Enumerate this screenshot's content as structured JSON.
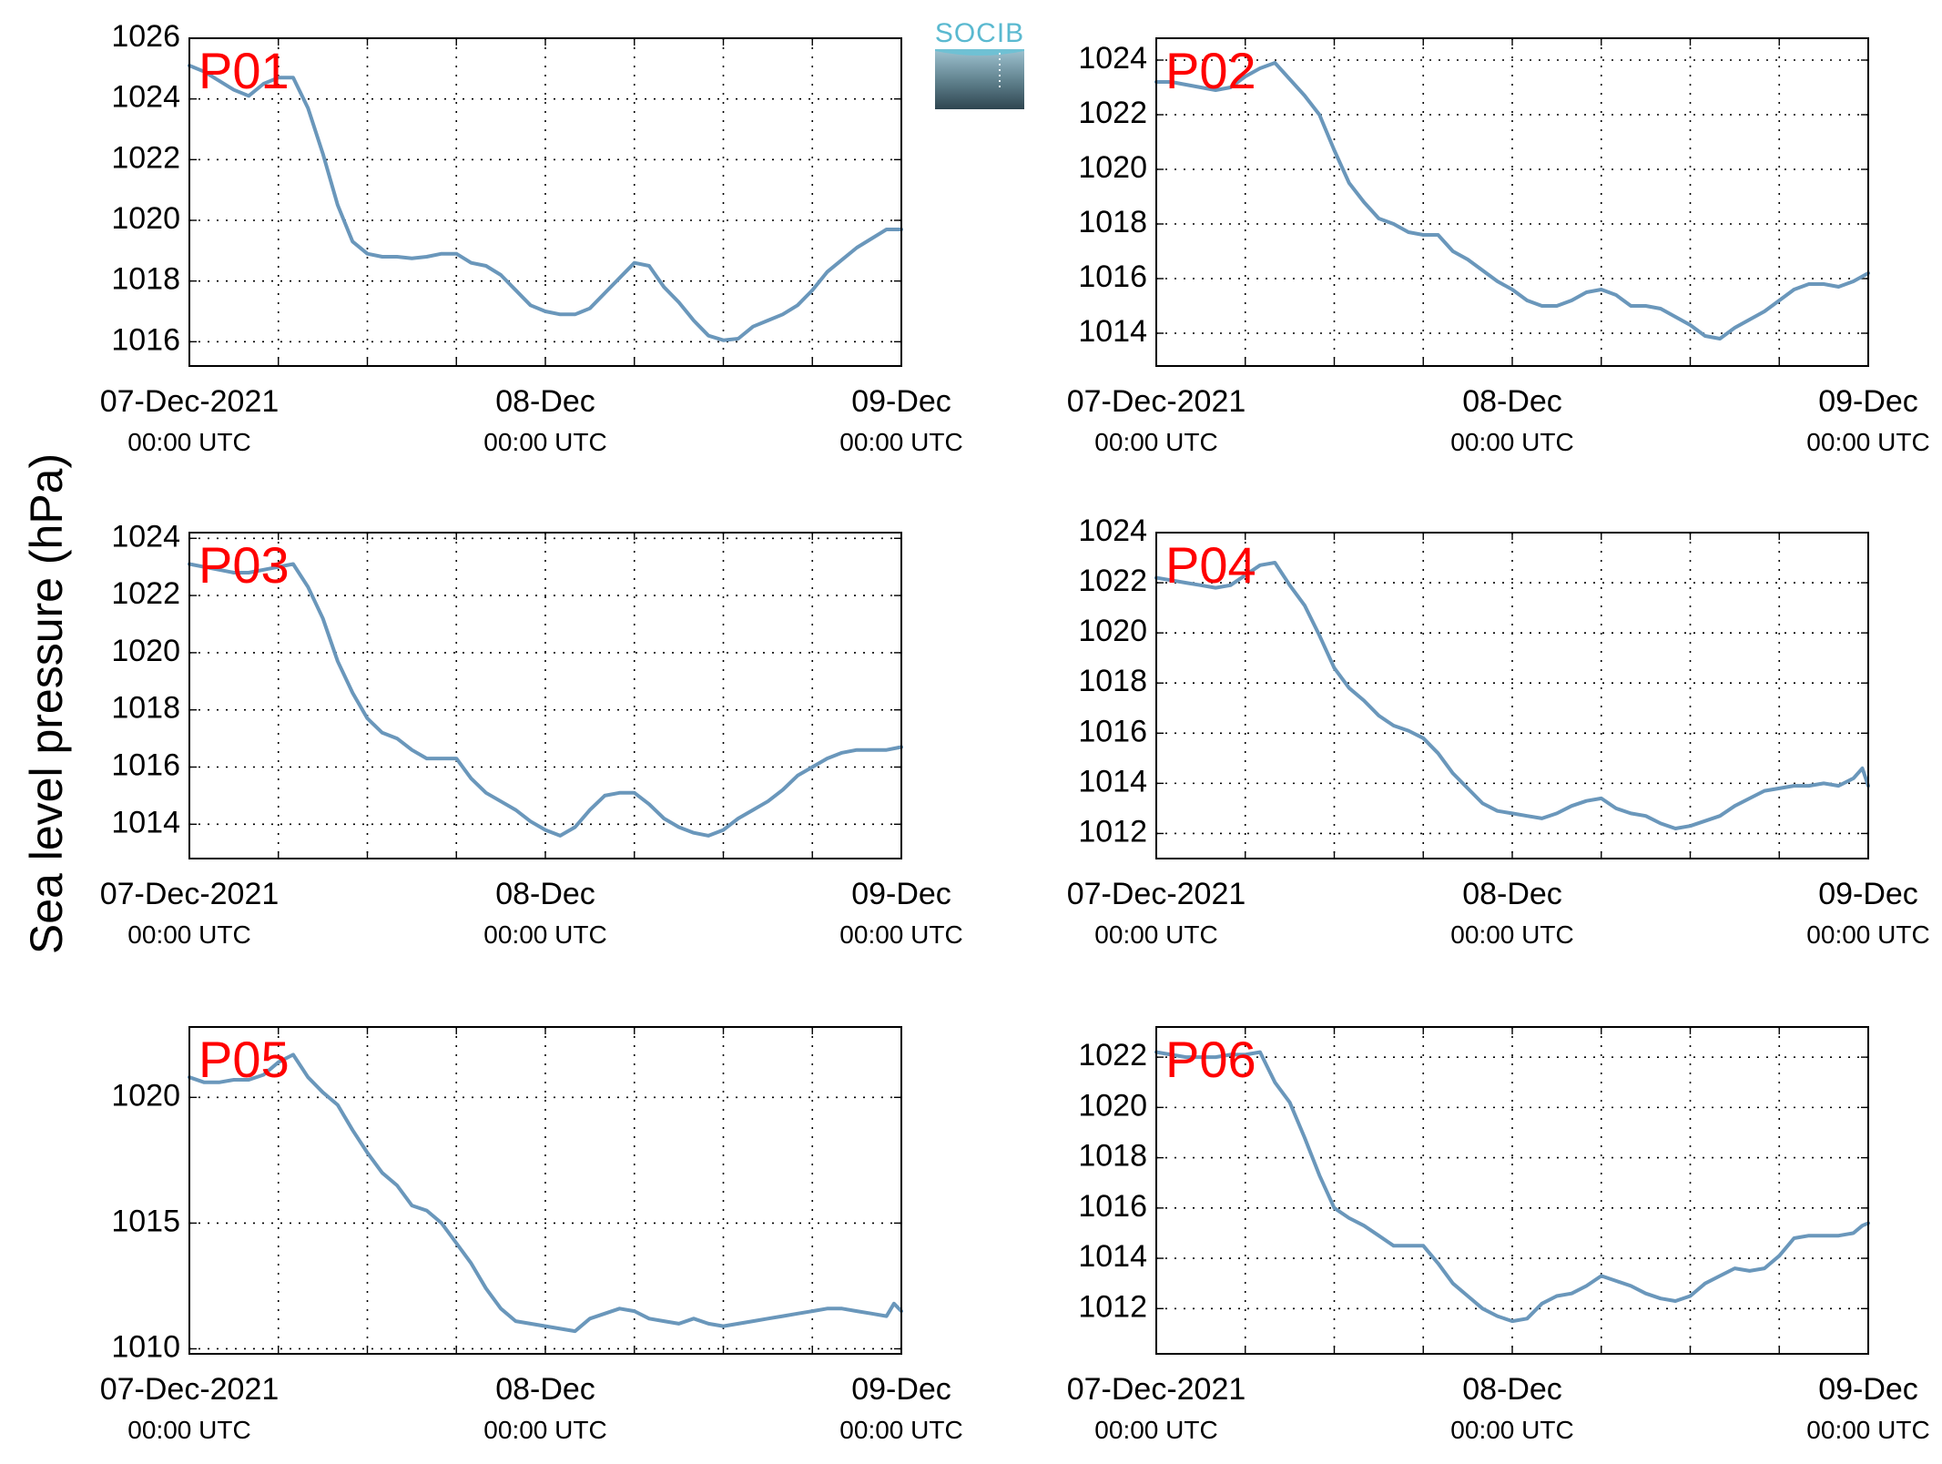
{
  "figure": {
    "ylabel": "Sea level pressure (hPa)",
    "logo_text": "SOCIB"
  },
  "chart_data": [
    {
      "type": "line",
      "title": "P01",
      "ylim": [
        1015.2,
        1026
      ],
      "yticks": [
        1016,
        1018,
        1020,
        1022,
        1024,
        1026
      ],
      "xlim": [
        0,
        48
      ],
      "xticks": [
        0,
        6,
        12,
        18,
        24,
        30,
        36,
        42,
        48
      ],
      "xticklabels": [
        {
          "x": 0,
          "date": "07-Dec-2021",
          "time": "00:00 UTC"
        },
        {
          "x": 24,
          "date": "08-Dec",
          "time": "00:00 UTC"
        },
        {
          "x": 48,
          "date": "09-Dec",
          "time": "00:00 UTC"
        }
      ],
      "grid": true,
      "color": "#6a97bb",
      "series": [
        {
          "x": [
            0,
            1,
            2,
            3,
            4,
            5,
            6,
            7,
            8,
            9,
            10,
            11,
            12,
            13,
            14,
            15,
            16,
            17,
            18,
            19,
            20,
            21,
            22,
            23,
            24,
            25,
            26,
            27,
            28,
            29,
            30,
            31,
            32,
            33,
            34,
            35,
            36,
            37,
            38,
            39,
            40,
            41,
            42,
            43,
            44,
            45,
            46,
            47,
            48
          ],
          "y": [
            1025.1,
            1024.9,
            1024.6,
            1024.3,
            1024.1,
            1024.5,
            1024.7,
            1024.7,
            1023.7,
            1022.2,
            1020.5,
            1019.3,
            1018.9,
            1018.8,
            1018.8,
            1018.75,
            1018.8,
            1018.9,
            1018.9,
            1018.6,
            1018.5,
            1018.2,
            1017.7,
            1017.2,
            1017.0,
            1016.9,
            1016.9,
            1017.1,
            1017.6,
            1018.1,
            1018.6,
            1018.5,
            1017.8,
            1017.3,
            1016.7,
            1016.2,
            1016.05,
            1016.1,
            1016.5,
            1016.7,
            1016.9,
            1017.2,
            1017.7,
            1018.3,
            1018.7,
            1019.1,
            1019.4,
            1019.7,
            1019.7
          ]
        }
      ]
    },
    {
      "type": "line",
      "title": "P02",
      "ylim": [
        1012.8,
        1024.8
      ],
      "yticks": [
        1014,
        1016,
        1018,
        1020,
        1022,
        1024
      ],
      "xlim": [
        0,
        48
      ],
      "xticks": [
        0,
        6,
        12,
        18,
        24,
        30,
        36,
        42,
        48
      ],
      "xticklabels": [
        {
          "x": 0,
          "date": "07-Dec-2021",
          "time": "00:00 UTC"
        },
        {
          "x": 24,
          "date": "08-Dec",
          "time": "00:00 UTC"
        },
        {
          "x": 48,
          "date": "09-Dec",
          "time": "00:00 UTC"
        }
      ],
      "grid": true,
      "color": "#6a97bb",
      "series": [
        {
          "x": [
            0,
            1,
            2,
            3,
            4,
            5,
            6,
            7,
            8,
            9,
            10,
            11,
            12,
            13,
            14,
            15,
            16,
            17,
            18,
            19,
            20,
            21,
            22,
            23,
            24,
            25,
            26,
            27,
            28,
            29,
            30,
            31,
            32,
            33,
            34,
            35,
            36,
            37,
            38,
            39,
            40,
            41,
            42,
            43,
            44,
            45,
            46,
            47,
            48
          ],
          "y": [
            1023.2,
            1023.2,
            1023.1,
            1023.0,
            1022.9,
            1023.0,
            1023.4,
            1023.7,
            1023.9,
            1023.3,
            1022.7,
            1022.0,
            1020.7,
            1019.5,
            1018.8,
            1018.2,
            1018.0,
            1017.7,
            1017.6,
            1017.6,
            1017.0,
            1016.7,
            1016.3,
            1015.9,
            1015.6,
            1015.2,
            1015.0,
            1015.0,
            1015.2,
            1015.5,
            1015.6,
            1015.4,
            1015.0,
            1015.0,
            1014.9,
            1014.6,
            1014.3,
            1013.9,
            1013.8,
            1014.2,
            1014.5,
            1014.8,
            1015.2,
            1015.6,
            1015.8,
            1015.8,
            1015.7,
            1015.9,
            1016.2
          ]
        }
      ]
    },
    {
      "type": "line",
      "title": "P03",
      "ylim": [
        1012.8,
        1024.2
      ],
      "yticks": [
        1014,
        1016,
        1018,
        1020,
        1022,
        1024
      ],
      "xlim": [
        0,
        48
      ],
      "xticks": [
        0,
        6,
        12,
        18,
        24,
        30,
        36,
        42,
        48
      ],
      "xticklabels": [
        {
          "x": 0,
          "date": "07-Dec-2021",
          "time": "00:00 UTC"
        },
        {
          "x": 24,
          "date": "08-Dec",
          "time": "00:00 UTC"
        },
        {
          "x": 48,
          "date": "09-Dec",
          "time": "00:00 UTC"
        }
      ],
      "grid": true,
      "color": "#6a97bb",
      "series": [
        {
          "x": [
            0,
            1,
            2,
            3,
            4,
            5,
            6,
            7,
            8,
            9,
            10,
            11,
            12,
            13,
            14,
            15,
            16,
            17,
            18,
            19,
            20,
            21,
            22,
            23,
            24,
            25,
            26,
            27,
            28,
            29,
            30,
            31,
            32,
            33,
            34,
            35,
            36,
            37,
            38,
            39,
            40,
            41,
            42,
            43,
            44,
            45,
            46,
            47,
            48
          ],
          "y": [
            1023.1,
            1023.0,
            1022.9,
            1022.8,
            1022.8,
            1022.9,
            1023.0,
            1023.1,
            1022.3,
            1021.2,
            1019.7,
            1018.6,
            1017.7,
            1017.2,
            1017.0,
            1016.6,
            1016.3,
            1016.3,
            1016.3,
            1015.6,
            1015.1,
            1014.8,
            1014.5,
            1014.1,
            1013.8,
            1013.6,
            1013.9,
            1014.5,
            1015.0,
            1015.1,
            1015.1,
            1014.7,
            1014.2,
            1013.9,
            1013.7,
            1013.6,
            1013.8,
            1014.2,
            1014.5,
            1014.8,
            1015.2,
            1015.7,
            1016.0,
            1016.3,
            1016.5,
            1016.6,
            1016.6,
            1016.6,
            1016.7
          ]
        }
      ]
    },
    {
      "type": "line",
      "title": "P04",
      "ylim": [
        1011.0,
        1024.0
      ],
      "yticks": [
        1012,
        1014,
        1016,
        1018,
        1020,
        1022,
        1024
      ],
      "xlim": [
        0,
        48
      ],
      "xticks": [
        0,
        6,
        12,
        18,
        24,
        30,
        36,
        42,
        48
      ],
      "xticklabels": [
        {
          "x": 0,
          "date": "07-Dec-2021",
          "time": "00:00 UTC"
        },
        {
          "x": 24,
          "date": "08-Dec",
          "time": "00:00 UTC"
        },
        {
          "x": 48,
          "date": "09-Dec",
          "time": "00:00 UTC"
        }
      ],
      "grid": true,
      "color": "#6a97bb",
      "series": [
        {
          "x": [
            0,
            1,
            2,
            3,
            4,
            5,
            6,
            7,
            8,
            9,
            10,
            11,
            12,
            13,
            14,
            15,
            16,
            17,
            18,
            19,
            20,
            21,
            22,
            23,
            24,
            25,
            26,
            27,
            28,
            29,
            30,
            31,
            32,
            33,
            34,
            35,
            36,
            37,
            38,
            39,
            40,
            41,
            42,
            43,
            44,
            45,
            46,
            47,
            47.6,
            48
          ],
          "y": [
            1022.2,
            1022.1,
            1022.0,
            1021.9,
            1021.8,
            1021.9,
            1022.3,
            1022.7,
            1022.8,
            1021.9,
            1021.1,
            1019.9,
            1018.6,
            1017.8,
            1017.3,
            1016.7,
            1016.3,
            1016.1,
            1015.8,
            1015.2,
            1014.4,
            1013.8,
            1013.2,
            1012.9,
            1012.8,
            1012.7,
            1012.6,
            1012.8,
            1013.1,
            1013.3,
            1013.4,
            1013.0,
            1012.8,
            1012.7,
            1012.4,
            1012.2,
            1012.3,
            1012.5,
            1012.7,
            1013.1,
            1013.4,
            1013.7,
            1013.8,
            1013.9,
            1013.9,
            1014.0,
            1013.9,
            1014.2,
            1014.6,
            1013.9
          ]
        }
      ]
    },
    {
      "type": "line",
      "title": "P05",
      "ylim": [
        1009.8,
        1022.8
      ],
      "yticks": [
        1010,
        1015,
        1020
      ],
      "xlim": [
        0,
        48
      ],
      "xticks": [
        0,
        6,
        12,
        18,
        24,
        30,
        36,
        42,
        48
      ],
      "xticklabels": [
        {
          "x": 0,
          "date": "07-Dec-2021",
          "time": "00:00 UTC"
        },
        {
          "x": 24,
          "date": "08-Dec",
          "time": "00:00 UTC"
        },
        {
          "x": 48,
          "date": "09-Dec",
          "time": "00:00 UTC"
        }
      ],
      "grid": true,
      "color": "#6a97bb",
      "series": [
        {
          "x": [
            0,
            1,
            2,
            3,
            4,
            5,
            6,
            7,
            8,
            9,
            10,
            11,
            12,
            13,
            14,
            15,
            16,
            17,
            18,
            19,
            20,
            21,
            22,
            23,
            24,
            25,
            26,
            27,
            28,
            29,
            30,
            31,
            32,
            33,
            34,
            35,
            36,
            37,
            38,
            39,
            40,
            41,
            42,
            43,
            44,
            45,
            46,
            47,
            47.5,
            48
          ],
          "y": [
            1020.8,
            1020.6,
            1020.6,
            1020.7,
            1020.7,
            1020.9,
            1021.4,
            1021.7,
            1020.8,
            1020.2,
            1019.7,
            1018.7,
            1017.8,
            1017.0,
            1016.5,
            1015.7,
            1015.5,
            1015.0,
            1014.2,
            1013.4,
            1012.4,
            1011.6,
            1011.1,
            1011.0,
            1010.9,
            1010.8,
            1010.7,
            1011.2,
            1011.4,
            1011.6,
            1011.5,
            1011.2,
            1011.1,
            1011.0,
            1011.2,
            1011.0,
            1010.9,
            1011.0,
            1011.1,
            1011.2,
            1011.3,
            1011.4,
            1011.5,
            1011.6,
            1011.6,
            1011.5,
            1011.4,
            1011.3,
            1011.8,
            1011.5
          ]
        }
      ]
    },
    {
      "type": "line",
      "title": "P06",
      "ylim": [
        1010.2,
        1023.2
      ],
      "yticks": [
        1012,
        1014,
        1016,
        1018,
        1020,
        1022
      ],
      "xlim": [
        0,
        48
      ],
      "xticks": [
        0,
        6,
        12,
        18,
        24,
        30,
        36,
        42,
        48
      ],
      "xticklabels": [
        {
          "x": 0,
          "date": "07-Dec-2021",
          "time": "00:00 UTC"
        },
        {
          "x": 24,
          "date": "08-Dec",
          "time": "00:00 UTC"
        },
        {
          "x": 48,
          "date": "09-Dec",
          "time": "00:00 UTC"
        }
      ],
      "grid": true,
      "color": "#6a97bb",
      "series": [
        {
          "x": [
            0,
            1,
            2,
            3,
            4,
            5,
            6,
            7,
            8,
            9,
            10,
            11,
            12,
            13,
            14,
            15,
            16,
            17,
            18,
            19,
            20,
            21,
            22,
            23,
            24,
            25,
            26,
            27,
            28,
            29,
            30,
            31,
            32,
            33,
            34,
            35,
            36,
            37,
            38,
            39,
            40,
            41,
            42,
            43,
            44,
            45,
            46,
            47,
            47.6,
            48
          ],
          "y": [
            1022.2,
            1022.1,
            1022.0,
            1022.0,
            1022.0,
            1022.1,
            1022.1,
            1022.2,
            1021.0,
            1020.2,
            1018.8,
            1017.3,
            1016.0,
            1015.6,
            1015.3,
            1014.9,
            1014.5,
            1014.5,
            1014.5,
            1013.8,
            1013.0,
            1012.5,
            1012.0,
            1011.7,
            1011.5,
            1011.6,
            1012.2,
            1012.5,
            1012.6,
            1012.9,
            1013.3,
            1013.1,
            1012.9,
            1012.6,
            1012.4,
            1012.3,
            1012.5,
            1013.0,
            1013.3,
            1013.6,
            1013.5,
            1013.6,
            1014.1,
            1014.8,
            1014.9,
            1014.9,
            1014.9,
            1015.0,
            1015.3,
            1015.4
          ]
        }
      ]
    }
  ]
}
